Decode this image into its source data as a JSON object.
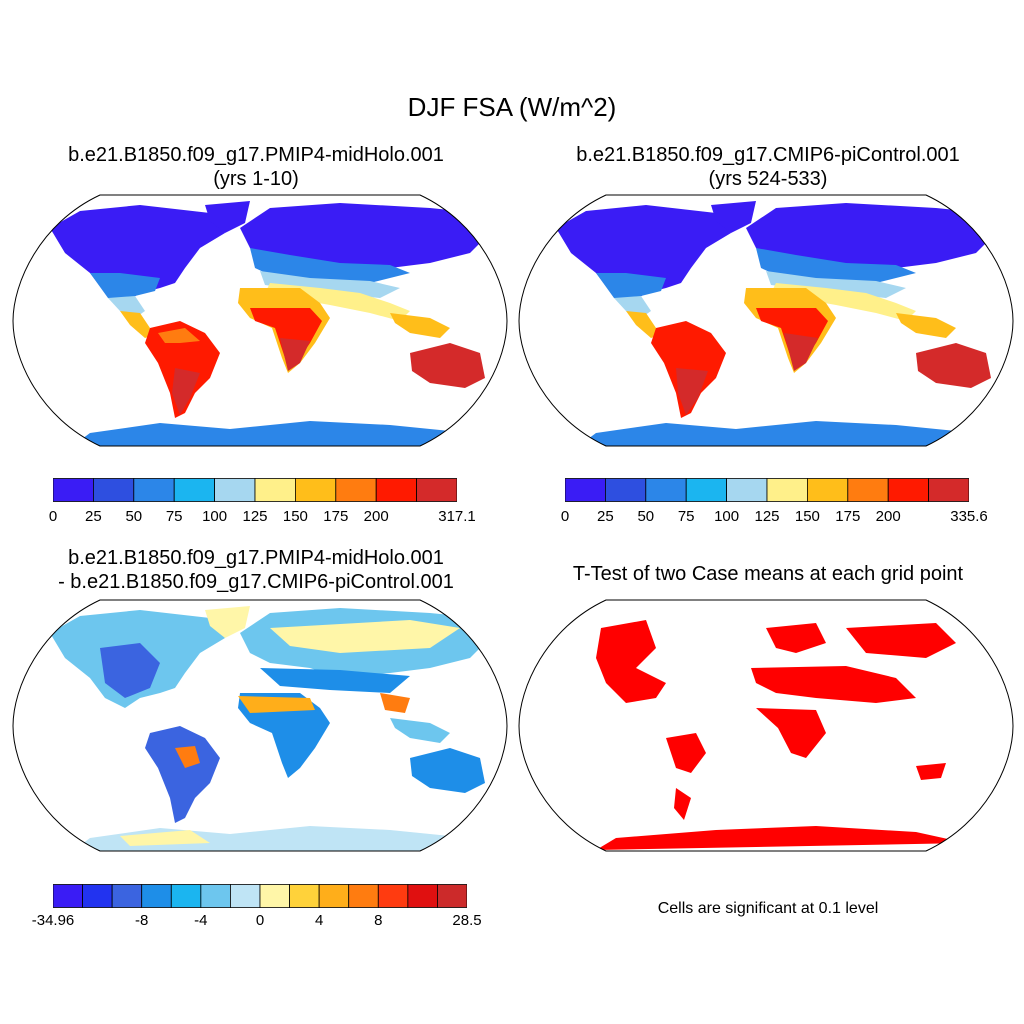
{
  "figure": {
    "title": "DJF FSA (W/m^2)"
  },
  "panels": {
    "top_left": {
      "title_line1": "b.e21.B1850.f09_g17.PMIP4-midHolo.001",
      "title_line2": "(yrs 1-10)",
      "colorbar": {
        "colors": [
          "#3a1cf5",
          "#2e4fe0",
          "#2c86e8",
          "#1bb5f0",
          "#a6d7f0",
          "#fff08a",
          "#ffbe1a",
          "#ff7c10",
          "#ff1a00",
          "#d42a2a"
        ],
        "labels": [
          "0",
          "25",
          "50",
          "75",
          "100",
          "125",
          "150",
          "175",
          "200",
          "317.1"
        ]
      }
    },
    "top_right": {
      "title_line1": "b.e21.B1850.f09_g17.CMIP6-piControl.001",
      "title_line2": "(yrs 524-533)",
      "colorbar": {
        "colors": [
          "#3a1cf5",
          "#2e4fe0",
          "#2c86e8",
          "#1bb5f0",
          "#a6d7f0",
          "#fff08a",
          "#ffbe1a",
          "#ff7c10",
          "#ff1a00",
          "#d42a2a"
        ],
        "labels": [
          "0",
          "25",
          "50",
          "75",
          "100",
          "125",
          "150",
          "175",
          "200",
          "335.6"
        ]
      }
    },
    "bottom_left": {
      "title_line1": "b.e21.B1850.f09_g17.PMIP4-midHolo.001",
      "title_line2": "- b.e21.B1850.f09_g17.CMIP6-piControl.001",
      "colorbar": {
        "colors": [
          "#3a1cf5",
          "#2233f0",
          "#3b64e0",
          "#1e8ee8",
          "#1bb5f0",
          "#6dc6ee",
          "#bfe4f5",
          "#fff6a8",
          "#ffd23a",
          "#ffae1a",
          "#ff7c10",
          "#ff3b10",
          "#e01010",
          "#cc2a2a"
        ],
        "labels": [
          "-34.96",
          "-8",
          "-4",
          "0",
          "4",
          "8",
          "28.5"
        ]
      }
    },
    "bottom_right": {
      "title": "T-Test of two Case means at each grid point",
      "note": "Cells are significant at 0.1 level",
      "color": "#ff0000"
    }
  }
}
